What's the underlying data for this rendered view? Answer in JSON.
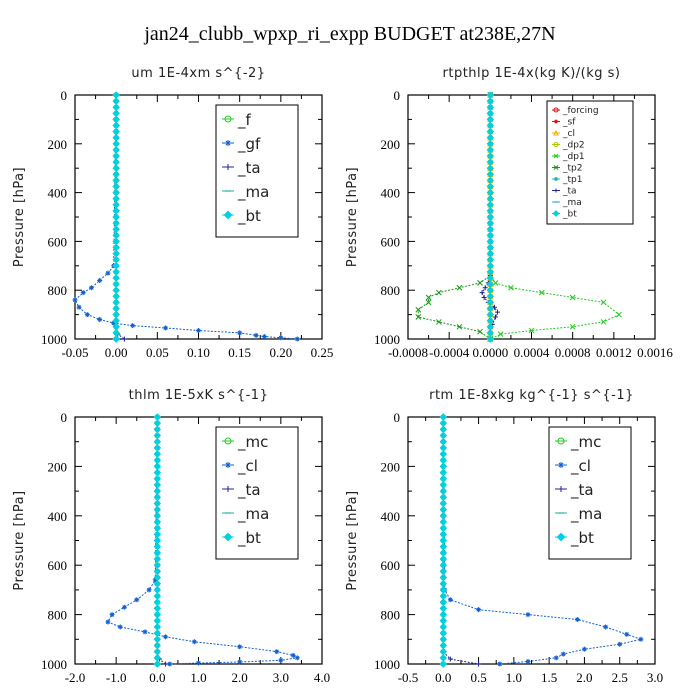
{
  "title": "jan24_clubb_wpxp_ri_expp  BUDGET at238E,27N",
  "colors": {
    "green": "#22cc22",
    "red": "#e01010",
    "orange": "#f0b000",
    "yellowgreen": "#aacc00",
    "darkgreen": "#119911",
    "teal": "#20b0a0",
    "navy": "#2020a0",
    "blue": "#1060d0",
    "cyan": "#00d0e0",
    "lightblue": "#30a0e0"
  },
  "chart_data": [
    {
      "id": "um",
      "type": "line",
      "title": "um   1E-4xm s^{-2}",
      "ylabel": "Pressure [hPa]",
      "xlim": [
        -0.05,
        0.25
      ],
      "ylim": [
        1000,
        0
      ],
      "xticks": [
        -0.05,
        0,
        0.05,
        0.1,
        0.15,
        0.2,
        0.25
      ],
      "xtick_labels": [
        "-0.05",
        "0.00",
        "0.05",
        "0.10",
        "0.15",
        "0.20",
        "0.25"
      ],
      "yticks": [
        0,
        200,
        400,
        600,
        800,
        1000
      ],
      "ytick_labels": [
        "0",
        "200",
        "400",
        "600",
        "800",
        "1000"
      ],
      "legend": "top-right",
      "legend_size": "large",
      "series": [
        {
          "name": "_f",
          "color": "green",
          "marker": "circle",
          "x": [
            0,
            0,
            0,
            0,
            0,
            0,
            0,
            0,
            0,
            0,
            0
          ],
          "y": [
            0,
            100,
            200,
            300,
            400,
            500,
            600,
            700,
            800,
            900,
            1000
          ]
        },
        {
          "name": "_gf",
          "color": "blue",
          "marker": "star",
          "x": [
            0,
            -0.003,
            -0.01,
            -0.02,
            -0.03,
            -0.04,
            -0.05,
            -0.045,
            -0.035,
            -0.02,
            -0.003,
            0.02,
            0.06,
            0.1,
            0.15,
            0.17,
            0.18,
            0.2,
            0.22
          ],
          "y": [
            0,
            700,
            730,
            760,
            790,
            810,
            840,
            870,
            900,
            920,
            935,
            945,
            955,
            965,
            975,
            985,
            990,
            995,
            1000
          ]
        },
        {
          "name": "_ta",
          "color": "navy",
          "marker": "plus",
          "x": [
            0,
            0,
            0,
            0,
            0,
            0,
            0,
            0.002,
            0.01
          ],
          "y": [
            0,
            200,
            400,
            600,
            800,
            900,
            950,
            980,
            1000
          ]
        },
        {
          "name": "_ma",
          "color": "teal",
          "marker": "dash",
          "x": [
            0,
            0,
            0,
            0,
            0,
            0,
            0,
            0,
            0,
            0,
            0
          ],
          "y": [
            0,
            100,
            200,
            300,
            400,
            500,
            600,
            700,
            800,
            900,
            1000
          ]
        },
        {
          "name": "_bt",
          "color": "cyan",
          "marker": "diamond",
          "x": [
            0,
            0,
            0,
            0,
            0,
            0,
            0,
            0,
            0,
            0,
            0
          ],
          "y": [
            0,
            100,
            200,
            300,
            400,
            500,
            600,
            700,
            800,
            900,
            1000
          ]
        }
      ]
    },
    {
      "id": "rtpthlp",
      "type": "line",
      "title": "rtpthlp   1E-4x(kg K)/(kg s)",
      "ylabel": "Pressure [hPa]",
      "xlim": [
        -0.0008,
        0.0016
      ],
      "ylim": [
        1000,
        0
      ],
      "xticks": [
        -0.0008,
        -0.0004,
        0,
        0.0004,
        0.0008,
        0.0012,
        0.0016
      ],
      "xtick_labels": [
        "-0.0008",
        "-0.0004",
        "0.0000",
        "0.0004",
        "0.0008",
        "0.0012",
        "0.0016"
      ],
      "yticks": [
        0,
        200,
        400,
        600,
        800,
        1000
      ],
      "ytick_labels": [
        "0",
        "200",
        "400",
        "600",
        "800",
        "1000"
      ],
      "legend": "top-right",
      "legend_size": "small",
      "series": [
        {
          "name": "_forcing",
          "color": "red",
          "marker": "circle",
          "x": [
            0,
            0,
            0,
            0,
            0,
            0,
            0,
            0,
            0,
            0,
            0
          ],
          "y": [
            0,
            100,
            200,
            300,
            400,
            500,
            600,
            700,
            800,
            900,
            1000
          ]
        },
        {
          "name": "_sf",
          "color": "red",
          "marker": "star",
          "x": [
            0,
            0,
            0,
            0,
            0,
            0,
            0,
            0,
            0,
            0,
            0
          ],
          "y": [
            0,
            100,
            200,
            300,
            400,
            500,
            600,
            700,
            800,
            900,
            1000
          ]
        },
        {
          "name": "_cl",
          "color": "orange",
          "marker": "triangle",
          "x": [
            0,
            0,
            0,
            0,
            0,
            0,
            0
          ],
          "y": [
            0,
            200,
            400,
            600,
            800,
            900,
            1000
          ]
        },
        {
          "name": "_dp2",
          "color": "yellowgreen",
          "marker": "circle",
          "x": [
            0,
            0,
            0,
            0,
            0,
            0,
            0
          ],
          "y": [
            0,
            200,
            400,
            600,
            800,
            900,
            1000
          ]
        },
        {
          "name": "_dp1",
          "color": "green",
          "marker": "cross",
          "x": [
            0,
            0,
            5e-05,
            0.0002,
            0.0005,
            0.0008,
            0.0011,
            0.00125,
            0.0011,
            0.0008,
            0.0004,
            0.0001,
            0
          ],
          "y": [
            0,
            740,
            770,
            790,
            810,
            830,
            850,
            900,
            930,
            950,
            965,
            980,
            1000
          ]
        },
        {
          "name": "_tp2",
          "color": "darkgreen",
          "marker": "cross",
          "x": [
            0,
            0,
            -0.0001,
            -0.0003,
            -0.0005,
            -0.0006,
            -0.0006,
            -0.0007,
            -0.0007,
            -0.0005,
            -0.0003,
            -0.0001,
            0
          ],
          "y": [
            0,
            740,
            770,
            790,
            810,
            830,
            850,
            880,
            910,
            930,
            950,
            970,
            1000
          ]
        },
        {
          "name": "_tp1",
          "color": "teal",
          "marker": "star",
          "x": [
            0,
            0,
            0,
            0,
            0,
            0
          ],
          "y": [
            0,
            200,
            400,
            600,
            800,
            1000
          ]
        },
        {
          "name": "_ta",
          "color": "navy",
          "marker": "plus",
          "x": [
            0,
            0,
            -2e-05,
            -5e-05,
            -8e-05,
            -6e-05,
            -2e-05,
            4e-05,
            7e-05,
            5e-05,
            2e-05,
            0
          ],
          "y": [
            0,
            740,
            770,
            790,
            810,
            830,
            850,
            870,
            890,
            910,
            940,
            1000
          ]
        },
        {
          "name": "_ma",
          "color": "lightblue",
          "marker": "dash",
          "x": [
            0,
            0,
            0,
            0,
            0,
            0
          ],
          "y": [
            0,
            200,
            400,
            600,
            800,
            1000
          ]
        },
        {
          "name": "_bt",
          "color": "cyan",
          "marker": "diamond",
          "x": [
            0,
            0,
            0,
            0,
            0,
            0,
            0,
            0,
            0,
            0,
            0
          ],
          "y": [
            0,
            100,
            200,
            300,
            400,
            500,
            600,
            700,
            800,
            900,
            1000
          ]
        }
      ]
    },
    {
      "id": "thlm",
      "type": "line",
      "title": "thlm   1E-5xK s^{-1}",
      "ylabel": "Pressure [hPa]",
      "xlim": [
        -2.0,
        4.0
      ],
      "ylim": [
        1000,
        0
      ],
      "xticks": [
        -2,
        -1,
        0,
        1,
        2,
        3,
        4
      ],
      "xtick_labels": [
        "-2.0",
        "-1.0",
        "0.0",
        "1.0",
        "2.0",
        "3.0",
        "4.0"
      ],
      "yticks": [
        0,
        200,
        400,
        600,
        800,
        1000
      ],
      "ytick_labels": [
        "0",
        "200",
        "400",
        "600",
        "800",
        "1000"
      ],
      "legend": "top-right",
      "legend_size": "large",
      "series": [
        {
          "name": "_mc",
          "color": "green",
          "marker": "circle",
          "x": [
            0,
            0,
            0,
            0,
            0,
            0,
            0,
            0,
            0,
            0,
            0
          ],
          "y": [
            0,
            100,
            200,
            300,
            400,
            500,
            600,
            700,
            800,
            900,
            1000
          ]
        },
        {
          "name": "_cl",
          "color": "blue",
          "marker": "star",
          "x": [
            0,
            -0.05,
            -0.2,
            -0.5,
            -0.8,
            -1.1,
            -1.2,
            -0.9,
            -0.3,
            0.2,
            0.9,
            2.0,
            2.9,
            3.3,
            3.4,
            3.0,
            2.0,
            1.0,
            0.3
          ],
          "y": [
            0,
            660,
            700,
            740,
            770,
            800,
            830,
            850,
            870,
            890,
            910,
            930,
            950,
            965,
            975,
            985,
            992,
            996,
            1000
          ]
        },
        {
          "name": "_ta",
          "color": "navy",
          "marker": "plus",
          "x": [
            0,
            0,
            0,
            0,
            0,
            0,
            0,
            0.05,
            0.2
          ],
          "y": [
            0,
            200,
            400,
            600,
            800,
            900,
            950,
            980,
            1000
          ]
        },
        {
          "name": "_ma",
          "color": "teal",
          "marker": "dash",
          "x": [
            0,
            0,
            0,
            0,
            0,
            0,
            0,
            0,
            0,
            0,
            0
          ],
          "y": [
            0,
            100,
            200,
            300,
            400,
            500,
            600,
            700,
            800,
            900,
            1000
          ]
        },
        {
          "name": "_bt",
          "color": "cyan",
          "marker": "diamond",
          "x": [
            0,
            0,
            0,
            0,
            0,
            0,
            0,
            0,
            0,
            0,
            0
          ],
          "y": [
            0,
            100,
            200,
            300,
            400,
            500,
            600,
            700,
            800,
            900,
            1000
          ]
        }
      ]
    },
    {
      "id": "rtm",
      "type": "line",
      "title": "rtm   1E-8xkg kg^{-1} s^{-1}",
      "ylabel": "Pressure [hPa]",
      "xlim": [
        -0.5,
        3.0
      ],
      "ylim": [
        1000,
        0
      ],
      "xticks": [
        -0.5,
        0,
        0.5,
        1,
        1.5,
        2,
        2.5,
        3
      ],
      "xtick_labels": [
        "-0.5",
        "0.0",
        "0.5",
        "1.0",
        "1.5",
        "2.0",
        "2.5",
        "3.0"
      ],
      "yticks": [
        0,
        200,
        400,
        600,
        800,
        1000
      ],
      "ytick_labels": [
        "0",
        "200",
        "400",
        "600",
        "800",
        "1000"
      ],
      "legend": "top-right",
      "legend_size": "large",
      "series": [
        {
          "name": "_mc",
          "color": "green",
          "marker": "circle",
          "x": [
            0,
            0,
            0,
            0,
            0,
            0,
            0,
            0,
            0,
            0,
            0
          ],
          "y": [
            0,
            100,
            200,
            300,
            400,
            500,
            600,
            700,
            800,
            900,
            1000
          ]
        },
        {
          "name": "_cl",
          "color": "blue",
          "marker": "star",
          "x": [
            0,
            0.02,
            0.1,
            0.5,
            1.2,
            1.9,
            2.3,
            2.6,
            2.8,
            2.5,
            2.0,
            1.7,
            1.6,
            1.2,
            0.8
          ],
          "y": [
            0,
            700,
            740,
            780,
            800,
            820,
            850,
            880,
            900,
            920,
            940,
            960,
            975,
            990,
            1000
          ]
        },
        {
          "name": "_ta",
          "color": "navy",
          "marker": "plus",
          "x": [
            0,
            0,
            0,
            0,
            0,
            0,
            0,
            0.1,
            0.5
          ],
          "y": [
            0,
            200,
            400,
            600,
            800,
            900,
            950,
            980,
            1000
          ]
        },
        {
          "name": "_ma",
          "color": "teal",
          "marker": "dash",
          "x": [
            0,
            0,
            0,
            0,
            0,
            0,
            0,
            0,
            0,
            0,
            0
          ],
          "y": [
            0,
            100,
            200,
            300,
            400,
            500,
            600,
            700,
            800,
            900,
            1000
          ]
        },
        {
          "name": "_bt",
          "color": "cyan",
          "marker": "diamond",
          "x": [
            0,
            0,
            0,
            0,
            0,
            0,
            0,
            0,
            0,
            0,
            0
          ],
          "y": [
            0,
            100,
            200,
            300,
            400,
            500,
            600,
            700,
            800,
            900,
            1000
          ]
        }
      ]
    }
  ]
}
